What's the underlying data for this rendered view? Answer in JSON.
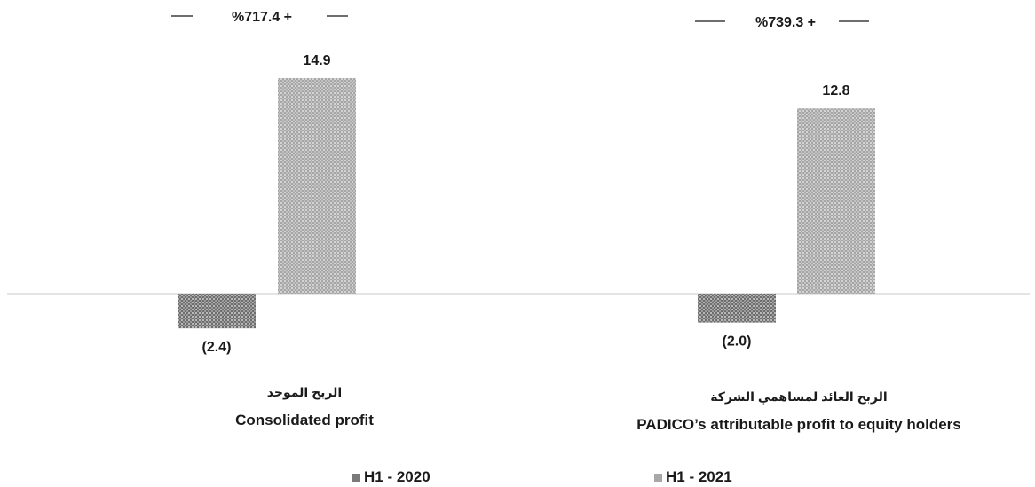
{
  "chart_data": {
    "type": "bar",
    "categories": [
      {
        "line1": "الربح الموحد",
        "line2": "Consolidated profit"
      },
      {
        "line1": "الربح العائد لمساهمي الشركة",
        "line2": "PADICO’s attributable profit to equity holders"
      }
    ],
    "series": [
      {
        "name": "H1 - 2020",
        "values": [
          -2.4,
          -2.0
        ],
        "labels": [
          "(2.4)",
          "(2.0)"
        ],
        "color": "#7a7a7a"
      },
      {
        "name": "H1 - 2021",
        "values": [
          14.9,
          12.8
        ],
        "labels": [
          "14.9",
          "12.8"
        ],
        "color": "#a8a8a8"
      }
    ],
    "growth_labels": [
      "%717.4 +",
      "%739.3 +"
    ],
    "ylim": [
      -2.4,
      14.9
    ],
    "legend_position": "bottom",
    "grid": false
  }
}
